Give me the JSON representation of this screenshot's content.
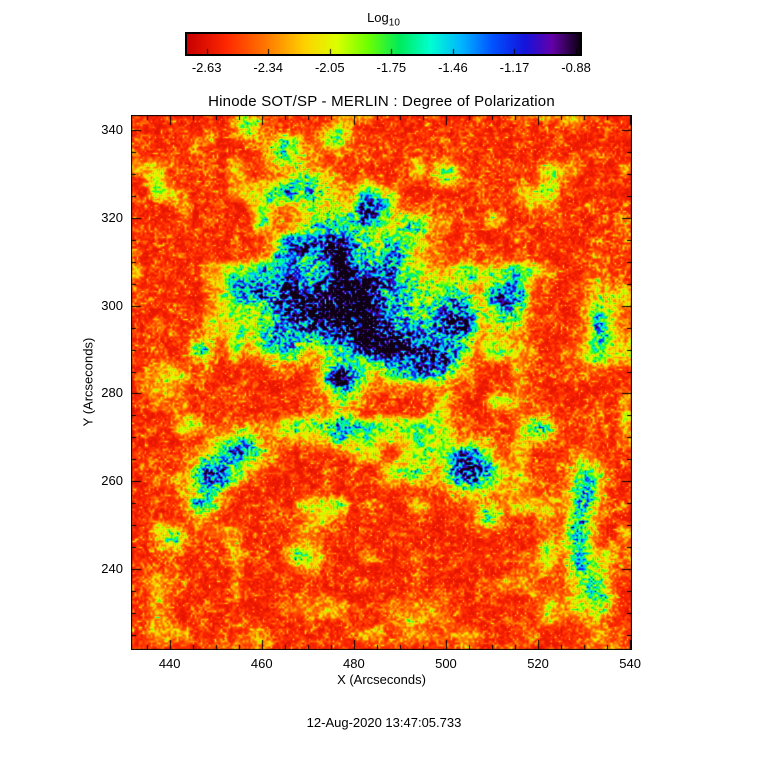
{
  "colorbar": {
    "label_main": "Log",
    "label_sub": "10"
  },
  "chart_data": {
    "type": "heatmap",
    "title": "Hinode SOT/SP - MERLIN : Degree of Polarization",
    "xlabel": "X (Arcseconds)",
    "ylabel": "Y (Arcseconds)",
    "timestamp": "12-Aug-2020 13:47:05.733",
    "colorbar_label": "Log10",
    "colorbar_ticks": [
      -2.63,
      -2.34,
      -2.05,
      -1.75,
      -1.46,
      -1.17,
      -0.88
    ],
    "value_range": [
      -2.63,
      -0.88
    ],
    "xlim": [
      431.6,
      540.4
    ],
    "ylim": [
      221.6,
      343.4
    ],
    "xticks": [
      440,
      460,
      480,
      500,
      520,
      540
    ],
    "yticks": [
      240,
      260,
      280,
      300,
      320,
      340
    ],
    "xtick_step": 20,
    "minor_tick_step": 5,
    "grid": false,
    "legend": "none",
    "colormap_stops": [
      [
        0.0,
        200,
        0,
        0
      ],
      [
        0.1,
        255,
        40,
        0
      ],
      [
        0.2,
        255,
        120,
        0
      ],
      [
        0.3,
        255,
        210,
        0
      ],
      [
        0.38,
        220,
        255,
        0
      ],
      [
        0.46,
        110,
        255,
        0
      ],
      [
        0.54,
        0,
        235,
        90
      ],
      [
        0.62,
        0,
        255,
        210
      ],
      [
        0.7,
        0,
        180,
        255
      ],
      [
        0.78,
        0,
        80,
        255
      ],
      [
        0.86,
        20,
        20,
        220
      ],
      [
        0.93,
        100,
        0,
        170
      ],
      [
        1.0,
        15,
        0,
        20
      ]
    ],
    "background_level": 0.05,
    "features": [
      [
        469,
        300,
        6,
        4.5,
        0.92
      ],
      [
        479,
        295,
        5,
        4.5,
        0.8
      ],
      [
        490,
        291,
        5.5,
        4,
        0.75
      ],
      [
        498,
        287,
        3.5,
        3,
        0.8
      ],
      [
        502,
        297,
        3,
        4.5,
        0.85
      ],
      [
        483,
        306,
        8,
        5,
        0.5
      ],
      [
        473,
        312,
        6,
        4,
        0.45
      ],
      [
        463,
        292,
        4,
        3,
        0.55
      ],
      [
        478,
        283,
        3,
        3,
        0.7
      ],
      [
        477,
        272,
        2.5,
        2.5,
        0.75
      ],
      [
        455,
        267,
        4,
        3,
        0.65
      ],
      [
        449,
        262,
        3,
        2.5,
        0.6
      ],
      [
        505,
        263,
        3.5,
        3.5,
        1.05
      ],
      [
        513,
        300,
        3,
        5,
        0.55
      ],
      [
        476,
        318,
        6,
        4,
        0.4
      ],
      [
        470,
        327,
        4,
        3,
        0.5
      ],
      [
        484,
        322,
        3,
        2.5,
        0.55
      ],
      [
        493,
        318,
        2.5,
        2,
        0.5
      ],
      [
        529,
        247,
        2,
        9,
        0.6
      ],
      [
        531,
        259,
        2,
        4,
        0.5
      ],
      [
        533,
        297,
        2,
        6,
        0.42
      ],
      [
        488,
        300,
        10,
        8,
        0.3
      ],
      [
        459,
        303,
        3,
        2.5,
        0.55
      ],
      [
        447,
        290,
        2,
        2,
        0.45
      ],
      [
        520,
        272,
        2.5,
        2,
        0.48
      ],
      [
        465,
        335,
        3,
        2.5,
        0.45
      ],
      [
        476,
        338,
        2.5,
        2,
        0.42
      ],
      [
        457,
        341,
        2,
        2,
        0.45
      ],
      [
        500,
        330,
        2,
        2,
        0.42
      ],
      [
        523,
        330,
        2,
        2,
        0.38
      ],
      [
        447,
        255,
        2.5,
        2,
        0.5
      ],
      [
        441,
        247,
        2,
        2,
        0.4
      ],
      [
        533,
        235,
        2,
        4,
        0.5
      ],
      [
        468,
        243,
        2,
        2,
        0.4
      ],
      [
        493,
        262,
        2.5,
        2,
        0.45
      ],
      [
        509,
        252,
        2,
        2,
        0.4
      ]
    ]
  }
}
